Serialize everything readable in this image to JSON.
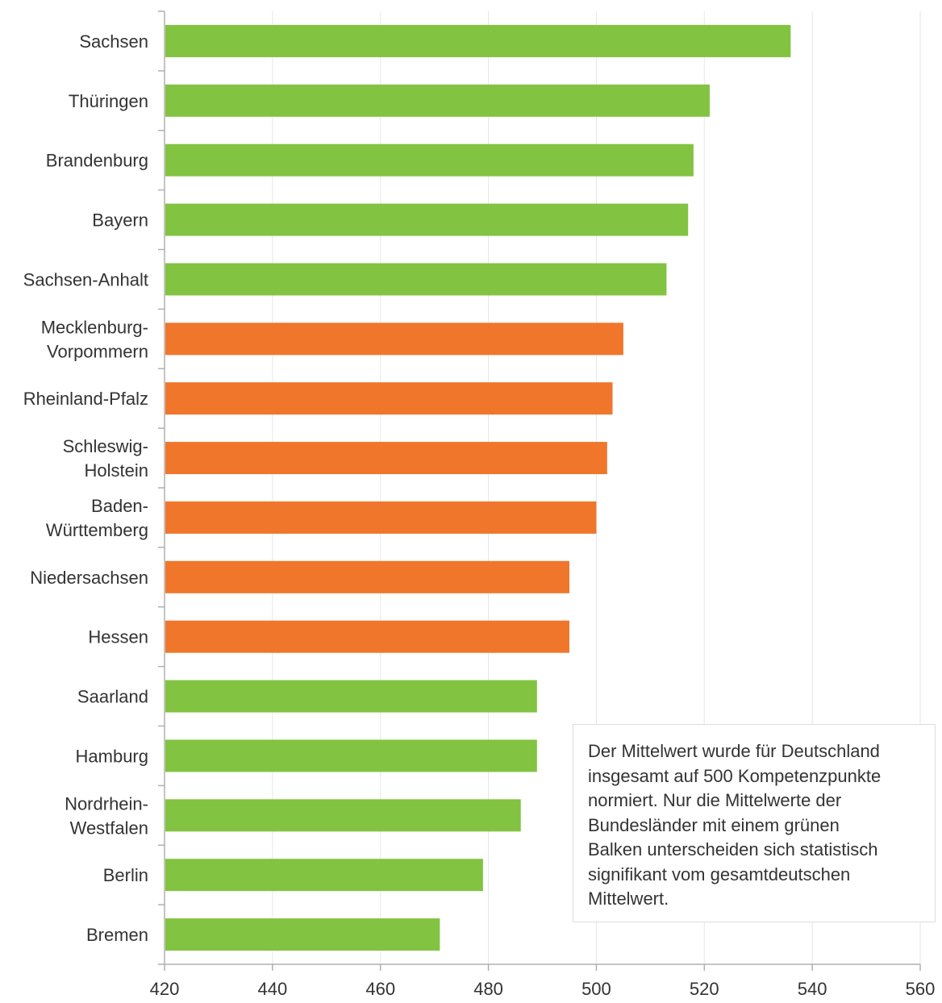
{
  "chart_data": {
    "type": "bar",
    "orientation": "horizontal",
    "categories": [
      [
        "Sachsen"
      ],
      [
        "Thüringen"
      ],
      [
        "Brandenburg"
      ],
      [
        "Bayern"
      ],
      [
        "Sachsen-Anhalt"
      ],
      [
        "Mecklenburg-",
        "Vorpommern"
      ],
      [
        "Rheinland-Pfalz"
      ],
      [
        "Schleswig-",
        "Holstein"
      ],
      [
        "Baden-",
        "Württemberg"
      ],
      [
        "Niedersachsen"
      ],
      [
        "Hessen"
      ],
      [
        "Saarland"
      ],
      [
        "Hamburg"
      ],
      [
        "Nordrhein-",
        "Westfalen"
      ],
      [
        "Berlin"
      ],
      [
        "Bremen"
      ]
    ],
    "values": [
      536,
      521,
      518,
      517,
      513,
      505,
      503,
      502,
      500,
      495,
      495,
      489,
      489,
      486,
      479,
      471
    ],
    "significant": [
      true,
      true,
      true,
      true,
      true,
      false,
      false,
      false,
      false,
      false,
      false,
      true,
      true,
      true,
      true,
      true
    ],
    "colors": {
      "significant": "#82c341",
      "not_significant": "#f0762b",
      "grid": "#e6e6e6",
      "axis": "#b0b0b0",
      "label": "#333333"
    },
    "xlim": [
      420,
      560
    ],
    "xticks": [
      420,
      440,
      460,
      480,
      500,
      520,
      540,
      560
    ],
    "grid": true,
    "xlabel": "",
    "ylabel": "",
    "title": ""
  },
  "note": {
    "lines": [
      "Der Mittelwert wurde für Deutschland",
      "insgesamt auf 500 Kompetenzpunkte",
      "normiert. Nur die Mittelwerte der",
      "Bundesländer mit einem grünen",
      "Balken unterscheiden sich statistisch",
      "signifikant vom gesamtdeutschen",
      "Mittelwert."
    ]
  }
}
